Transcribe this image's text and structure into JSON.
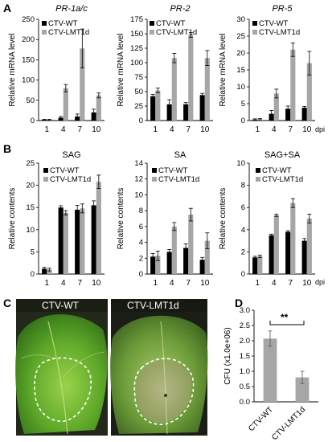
{
  "panels": {
    "A": "A",
    "B": "B",
    "C": "C",
    "D": "D"
  },
  "xunit": "dpi",
  "legend": {
    "wt": "CTV-WT",
    "lmt": "CTV-LMT1d"
  },
  "colors": {
    "wt": "#000000",
    "lmt": "#a6a6a6",
    "photo_dashed": "#ffffff"
  },
  "photos": {
    "left_label": "CTV-WT",
    "right_label": "CTV-LMT1d"
  },
  "significance": "**",
  "chart_data": [
    {
      "id": "A1",
      "type": "bar",
      "title": "PR-1a/c",
      "title_style": "italic",
      "ylabel": "Relative mRNA level",
      "ylim": [
        0,
        250
      ],
      "yticks": [
        0,
        50,
        100,
        150,
        200,
        250
      ],
      "categories": [
        "1",
        "4",
        "7",
        "10"
      ],
      "series": [
        {
          "name": "CTV-WT",
          "values": [
            2,
            7,
            10,
            20
          ],
          "errors": [
            1,
            3,
            6,
            8
          ]
        },
        {
          "name": "CTV-LMT1d",
          "values": [
            2,
            80,
            178,
            62
          ],
          "errors": [
            1,
            9,
            48,
            6
          ]
        }
      ]
    },
    {
      "id": "A2",
      "type": "bar",
      "title": "PR-2",
      "title_style": "italic",
      "ylabel": "Relative mRNA level",
      "ylim": [
        0,
        175
      ],
      "yticks": [
        0,
        25,
        50,
        75,
        100,
        125,
        150,
        175
      ],
      "categories": [
        "1",
        "4",
        "7",
        "10"
      ],
      "series": [
        {
          "name": "CTV-WT",
          "values": [
            42,
            28,
            28,
            44
          ],
          "errors": [
            3,
            8,
            3,
            3
          ]
        },
        {
          "name": "CTV-LMT1d",
          "values": [
            52,
            108,
            148,
            108
          ],
          "errors": [
            4,
            8,
            4,
            13
          ]
        }
      ]
    },
    {
      "id": "A3",
      "type": "bar",
      "title": "PR-5",
      "title_style": "italic",
      "ylabel": "Relative mRNA level",
      "ylim": [
        0,
        30
      ],
      "yticks": [
        0,
        5,
        10,
        15,
        20,
        25,
        30
      ],
      "categories": [
        "1",
        "4",
        "7",
        "10"
      ],
      "series": [
        {
          "name": "CTV-WT",
          "values": [
            0.3,
            2,
            3.5,
            3.8
          ],
          "errors": [
            0.2,
            1,
            0.8,
            0.4
          ]
        },
        {
          "name": "CTV-LMT1d",
          "values": [
            0.4,
            8,
            21,
            17
          ],
          "errors": [
            0.2,
            1.3,
            2,
            3.5
          ]
        }
      ]
    },
    {
      "id": "B1",
      "type": "bar",
      "title": "SAG",
      "title_style": "normal",
      "ylabel": "Relative contents",
      "ylim": [
        0,
        25
      ],
      "yticks": [
        0,
        5,
        10,
        15,
        20,
        25
      ],
      "categories": [
        "1",
        "4",
        "7",
        "10"
      ],
      "series": [
        {
          "name": "CTV-WT",
          "values": [
            1.2,
            15,
            14.5,
            15.5
          ],
          "errors": [
            0.3,
            0.4,
            1,
            1
          ]
        },
        {
          "name": "CTV-LMT1d",
          "values": [
            1,
            13.8,
            14.8,
            20.8
          ],
          "errors": [
            0.3,
            0.5,
            1,
            1.5
          ]
        }
      ]
    },
    {
      "id": "B2",
      "type": "bar",
      "title": "SA",
      "title_style": "normal",
      "ylabel": "Relative contents",
      "ylim": [
        0,
        14
      ],
      "yticks": [
        0,
        2,
        4,
        6,
        8,
        10,
        12,
        14
      ],
      "categories": [
        "1",
        "4",
        "7",
        "10"
      ],
      "series": [
        {
          "name": "CTV-WT",
          "values": [
            2.2,
            2.8,
            3.3,
            1.8
          ],
          "errors": [
            0.4,
            0.3,
            0.5,
            0.3
          ]
        },
        {
          "name": "CTV-LMT1d",
          "values": [
            2.3,
            6,
            7.5,
            4.2
          ],
          "errors": [
            0.6,
            0.5,
            0.8,
            1
          ]
        }
      ]
    },
    {
      "id": "B3",
      "type": "bar",
      "title": "SAG+SA",
      "title_style": "normal",
      "ylabel": "Relative contents",
      "ylim": [
        0,
        10
      ],
      "yticks": [
        0,
        2,
        4,
        6,
        8,
        10
      ],
      "categories": [
        "1",
        "4",
        "7",
        "10"
      ],
      "series": [
        {
          "name": "CTV-WT",
          "values": [
            1.5,
            3.5,
            3.8,
            3
          ],
          "errors": [
            0.1,
            0.1,
            0.1,
            0.2
          ]
        },
        {
          "name": "CTV-LMT1d",
          "values": [
            1.6,
            5.3,
            6.4,
            5
          ],
          "errors": [
            0.1,
            0.1,
            0.4,
            0.4
          ]
        }
      ]
    },
    {
      "id": "D",
      "type": "bar",
      "title": "",
      "title_style": "normal",
      "ylabel": "CFU (x1.0e+06)",
      "ylim": [
        0,
        3
      ],
      "yticks": [
        "0.0",
        "0.5",
        "1.0",
        "1.5",
        "2.0",
        "2.5",
        "3.0"
      ],
      "categories": [
        "CTV-WT",
        "CTV-LMT1d"
      ],
      "series": [
        {
          "name": "",
          "values": [
            2.07,
            0.8
          ],
          "errors": [
            0.25,
            0.2
          ]
        }
      ]
    }
  ]
}
